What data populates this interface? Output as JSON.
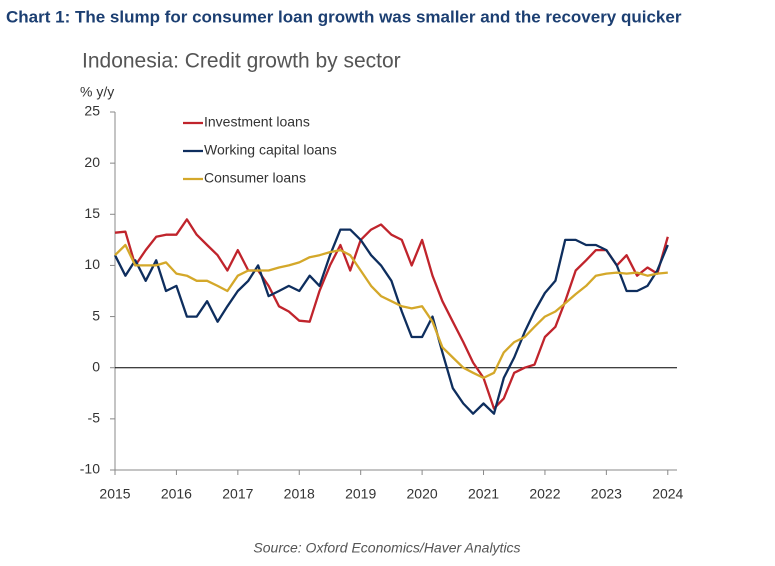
{
  "chart_data": {
    "type": "line",
    "title": "Chart 1: The slump for consumer loan growth was smaller and the recovery quicker",
    "subtitle": "Indonesia: Credit growth by sector",
    "y_axis_label": "% y/y",
    "source": "Source: Oxford Economics/Haver Analytics",
    "legend": "upper left",
    "x": [
      2015,
      2015.17,
      2015.33,
      2015.5,
      2015.67,
      2015.83,
      2016,
      2016.17,
      2016.33,
      2016.5,
      2016.67,
      2016.83,
      2017,
      2017.17,
      2017.33,
      2017.5,
      2017.67,
      2017.83,
      2018,
      2018.17,
      2018.33,
      2018.5,
      2018.67,
      2018.83,
      2019,
      2019.17,
      2019.33,
      2019.5,
      2019.67,
      2019.83,
      2020,
      2020.17,
      2020.33,
      2020.5,
      2020.67,
      2020.83,
      2021,
      2021.17,
      2021.33,
      2021.5,
      2021.67,
      2021.83,
      2022,
      2022.17,
      2022.33,
      2022.5,
      2022.67,
      2022.83,
      2023,
      2023.17,
      2023.33,
      2023.5,
      2023.67,
      2023.83,
      2024
    ],
    "series": [
      {
        "name": "Investment loans",
        "color": "#c0242c",
        "values": [
          13.2,
          13.3,
          10,
          11.5,
          12.8,
          13,
          13,
          14.5,
          13,
          12,
          11,
          9.5,
          11.5,
          9.5,
          9.5,
          8,
          6,
          5.5,
          4.6,
          4.5,
          7.5,
          10,
          12,
          9.5,
          12.5,
          13.5,
          14,
          13,
          12.5,
          10,
          12.5,
          9,
          6.5,
          4.5,
          2.5,
          0.5,
          -1,
          -4,
          -3,
          -0.5,
          0,
          0.3,
          3,
          4,
          6.5,
          9.5,
          10.5,
          11.5,
          11.5,
          10,
          11,
          9,
          9.8,
          9.2,
          12.8
        ]
      },
      {
        "name": "Working capital loans",
        "color": "#0e2e5e",
        "values": [
          11,
          9,
          10.5,
          8.5,
          10.5,
          7.5,
          8,
          5,
          5,
          6.5,
          4.5,
          6,
          7.5,
          8.5,
          10,
          7,
          7.5,
          8,
          7.5,
          9,
          8,
          11,
          13.5,
          13.5,
          12.5,
          11,
          10,
          8.5,
          5.5,
          3,
          3,
          5,
          1.5,
          -2,
          -3.5,
          -4.5,
          -3.5,
          -4.5,
          -1,
          1,
          3.5,
          5.5,
          7.3,
          8.5,
          12.5,
          12.5,
          12,
          12,
          11.5,
          10,
          7.5,
          7.5,
          8,
          9.5,
          12
        ]
      },
      {
        "name": "Consumer loans",
        "color": "#d4a82a",
        "values": [
          11,
          12,
          10,
          10,
          10,
          10.3,
          9.2,
          9,
          8.5,
          8.5,
          8,
          7.5,
          9,
          9.5,
          9.5,
          9.5,
          9.8,
          10,
          10.3,
          10.8,
          11,
          11.3,
          11.5,
          11,
          9.5,
          8,
          7,
          6.5,
          6,
          5.8,
          6,
          4.5,
          2,
          1,
          0,
          -0.5,
          -1,
          -0.5,
          1.5,
          2.5,
          3,
          4,
          5,
          5.5,
          6.3,
          7.2,
          8,
          9,
          9.2,
          9.3,
          9.2,
          9.3,
          9,
          9.2,
          9.3
        ]
      }
    ],
    "xlim": [
      2015,
      2024.15
    ],
    "xticks": [
      2015,
      2016,
      2017,
      2018,
      2019,
      2020,
      2021,
      2022,
      2023,
      2024
    ],
    "ylim": [
      -10,
      25
    ],
    "yticks": [
      -10,
      -5,
      0,
      5,
      10,
      15,
      20,
      25
    ]
  }
}
